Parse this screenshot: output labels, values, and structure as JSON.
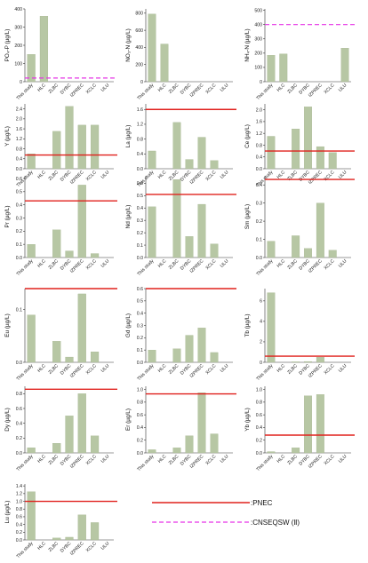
{
  "colors": {
    "bar": "#b7c7a4",
    "bar_edge": "#9fb088",
    "pnec": "#e0201c",
    "cnseqsw": "#e633e6"
  },
  "chart_data": [
    {
      "type": "bar",
      "ylabel": "PO₄-P (µg/L)",
      "categories": [
        "This study",
        "HLC",
        "ZLBC",
        "DYBC",
        "IZPREC",
        "XCLC",
        "ULU"
      ],
      "values": [
        150,
        360,
        null,
        null,
        null,
        null,
        null
      ],
      "ylim": [
        0,
        400
      ],
      "yticks": [
        "0",
        "100",
        "200",
        "300",
        "400"
      ],
      "pnec": null,
      "cnseqsw": 20
    },
    {
      "type": "bar",
      "ylabel": "NO₃-N (µg/L)",
      "categories": [
        "This study",
        "HLC",
        "ZLBC",
        "DYBC",
        "IZPREC",
        "XCLC",
        "ULU"
      ],
      "values": [
        790,
        440,
        null,
        null,
        null,
        null,
        null
      ],
      "ylim": [
        0,
        850
      ],
      "yticks": [
        "0",
        "200",
        "400",
        "600",
        "800"
      ],
      "pnec": null,
      "cnseqsw": null
    },
    {
      "type": "bar",
      "ylabel": "NH₄-N (µg/L)",
      "categories": [
        "This study",
        "HLC",
        "ZLBC",
        "DYBC",
        "IZPREC",
        "XCLC",
        "ULU"
      ],
      "values": [
        185,
        195,
        null,
        null,
        null,
        null,
        235
      ],
      "ylim": [
        0,
        510
      ],
      "yticks": [
        "0",
        "100",
        "200",
        "300",
        "400",
        "500"
      ],
      "pnec": null,
      "cnseqsw": 400
    },
    {
      "type": "bar",
      "ylabel": "Y (µg/L)",
      "categories": [
        "This study",
        "HLC",
        "ZLBC",
        "DYBC",
        "IZPREC",
        "XCLC",
        "ULU"
      ],
      "values": [
        0.6,
        null,
        1.5,
        2.5,
        1.75,
        1.75,
        null
      ],
      "ylim": [
        0,
        2.6
      ],
      "yticks": [
        "0.0",
        "0.4",
        "0.8",
        "1.2",
        "1.6",
        "2.0",
        "2.4"
      ],
      "pnec": 0.55,
      "cnseqsw": null
    },
    {
      "type": "bar",
      "ylabel": "La (µg/L)",
      "categories": [
        "This study",
        "HLC",
        "ZLBC",
        "DYBC",
        "IZPREC",
        "XCLC",
        "ULU"
      ],
      "values": [
        0.48,
        null,
        1.25,
        0.25,
        0.85,
        0.22,
        null
      ],
      "ylim": [
        0,
        1.75
      ],
      "yticks": [
        "0.0",
        "0.4",
        "0.8",
        "1.2",
        "1.6"
      ],
      "pnec": 1.6,
      "cnseqsw": null
    },
    {
      "type": "bar",
      "ylabel": "Ce (µg/L)",
      "categories": [
        "This study",
        "HLC",
        "ZLBC",
        "DYBC",
        "IZPREC",
        "XCLC",
        "ULU"
      ],
      "values": [
        1.1,
        null,
        1.35,
        2.1,
        0.75,
        0.55,
        null
      ],
      "ylim": [
        0,
        2.2
      ],
      "yticks": [
        "0.0",
        "0.4",
        "0.8",
        "1.2",
        "1.6",
        "2.0"
      ],
      "pnec": 0.6,
      "cnseqsw": null
    },
    {
      "type": "bar",
      "ylabel": "Pr (µg/L)",
      "categories": [
        "This study",
        "HLC",
        "ZLBC",
        "DYBC",
        "IZPREC",
        "XCLC",
        "ULU"
      ],
      "values": [
        0.1,
        null,
        0.21,
        0.05,
        0.55,
        0.03,
        null
      ],
      "ylim": [
        0,
        0.62
      ],
      "yticks": [
        "0.0",
        "0.1",
        "0.2",
        "0.3",
        "0.4",
        "0.5",
        "0.6"
      ],
      "pnec": 0.43,
      "cnseqsw": null
    },
    {
      "type": "bar",
      "ylabel": "Nd (µg/L)",
      "categories": [
        "This study",
        "HLC",
        "ZLBC",
        "DYBC",
        "IZPREC",
        "XCLC",
        "ULU"
      ],
      "values": [
        0.41,
        null,
        0.63,
        0.17,
        0.43,
        0.11,
        null
      ],
      "ylim": [
        0,
        0.66
      ],
      "yticks": [
        "0.0",
        "0.1",
        "0.2",
        "0.3",
        "0.4",
        "0.5",
        "0.6"
      ],
      "pnec": 0.51,
      "cnseqsw": null
    },
    {
      "type": "bar",
      "ylabel": "Sm (µg/L)",
      "categories": [
        "This study",
        "HLC",
        "ZLBC",
        "DYBC",
        "IZPREC",
        "XCLC",
        "ULU"
      ],
      "values": [
        0.09,
        null,
        0.12,
        0.05,
        0.3,
        0.04,
        null
      ],
      "ylim": [
        0,
        0.45
      ],
      "yticks": [
        "0.0",
        "0.1",
        "0.2",
        "0.3",
        "0.4"
      ],
      "pnec": 0.43,
      "cnseqsw": null
    },
    {
      "type": "bar",
      "ylabel": "Eu (µg/L)",
      "categories": [
        "This study",
        "HLC",
        "ZLBC",
        "DYBC",
        "IZPREC",
        "XCLC",
        "ULU"
      ],
      "values": [
        0.09,
        null,
        0.04,
        0.01,
        0.13,
        0.02,
        null
      ],
      "ylim": [
        0,
        0.14
      ],
      "yticks": [
        "0.0",
        "0.1"
      ],
      "pnec": 0.14,
      "cnseqsw": null
    },
    {
      "type": "bar",
      "ylabel": "Gd (µg/L)",
      "categories": [
        "This study",
        "HLC",
        "ZLBC",
        "DYBC",
        "IZPREC",
        "XCLC",
        "ULU"
      ],
      "values": [
        0.1,
        null,
        0.11,
        0.22,
        0.28,
        0.08,
        null
      ],
      "ylim": [
        0,
        0.6
      ],
      "yticks": [
        "0.0",
        "0.1",
        "0.2",
        "0.3",
        "0.4",
        "0.5",
        "0.6"
      ],
      "pnec": 0.6,
      "cnseqsw": null
    },
    {
      "type": "bar",
      "ylabel": "Tb (µg/L)",
      "categories": [
        "This study",
        "HLC",
        "ZLBC",
        "DYBC",
        "IZPREC",
        "XCLC",
        "ULU"
      ],
      "values": [
        6.8,
        null,
        0.05,
        0.08,
        0.5,
        null,
        null
      ],
      "ylim": [
        0,
        7.2
      ],
      "yticks": [
        "0",
        "2",
        "4",
        "6"
      ],
      "pnec": 0.6,
      "cnseqsw": null
    },
    {
      "type": "bar",
      "ylabel": "Dy (µg/L)",
      "categories": [
        "This study",
        "HLC",
        "ZLBC",
        "DYBC",
        "IZPREC",
        "XCLC",
        "ULU"
      ],
      "values": [
        0.07,
        null,
        0.13,
        0.5,
        0.8,
        0.23,
        null
      ],
      "ylim": [
        0,
        0.9
      ],
      "yticks": [
        "0.0",
        "0.2",
        "0.4",
        "0.6",
        "0.8"
      ],
      "pnec": 0.86,
      "cnseqsw": null
    },
    {
      "type": "bar",
      "ylabel": "Er (µg/L)",
      "categories": [
        "This study",
        "HLC",
        "ZLBC",
        "DYBC",
        "IZPREC",
        "XCLC",
        "ULU"
      ],
      "values": [
        0.05,
        null,
        0.08,
        0.27,
        0.95,
        0.3,
        null
      ],
      "ylim": [
        0,
        1.05
      ],
      "yticks": [
        "0.0",
        "0.2",
        "0.4",
        "0.6",
        "0.8",
        "1.0"
      ],
      "pnec": 0.93,
      "cnseqsw": null
    },
    {
      "type": "bar",
      "ylabel": "Yb (µg/L)",
      "categories": [
        "This study",
        "HLC",
        "ZLBC",
        "DYBC",
        "IZPREC",
        "XCLC",
        "ULU"
      ],
      "values": [
        0.02,
        null,
        0.08,
        0.9,
        0.92,
        null,
        null
      ],
      "ylim": [
        0,
        1.05
      ],
      "yticks": [
        "0.0",
        "0.2",
        "0.4",
        "0.6",
        "0.8",
        "1.0"
      ],
      "pnec": 0.28,
      "cnseqsw": null
    },
    {
      "type": "bar",
      "ylabel": "Lu (µg/L)",
      "categories": [
        "This study",
        "HLC",
        "ZLBC",
        "DYBC",
        "IZPREC",
        "XCLC",
        "ULU"
      ],
      "values": [
        1.25,
        null,
        0.05,
        0.07,
        0.65,
        0.45,
        null
      ],
      "ylim": [
        0,
        1.45
      ],
      "yticks": [
        "0.0",
        "0.2",
        "0.4",
        "0.6",
        "0.8",
        "1.0",
        "1.2",
        "1.4"
      ],
      "pnec": 1.0,
      "cnseqsw": null
    }
  ],
  "legend": {
    "pnec_label": ":PNEC",
    "cnseqsw_label": ":CNSEQSW (Ⅱ)"
  }
}
